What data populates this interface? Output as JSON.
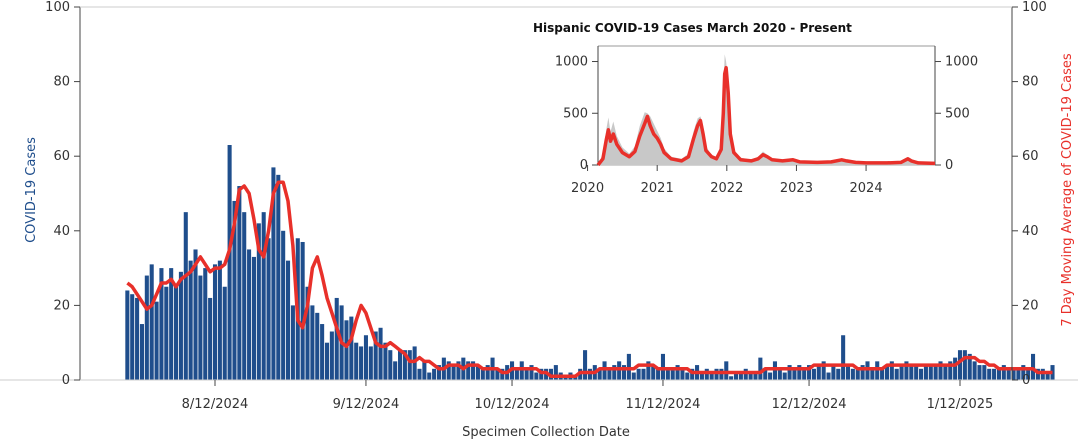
{
  "chart_data": [
    {
      "type": "bar",
      "xlabel": "Specimen Collection Date",
      "ylabel": "COVID-19 Cases",
      "y2label": "7 Day Moving Average of COVID-19 Cases",
      "ylim": [
        0,
        100
      ],
      "y2lim": [
        0,
        100
      ],
      "yticks": [
        "0",
        "20",
        "40",
        "60",
        "80",
        "100"
      ],
      "y2ticks": [
        "0",
        "20",
        "40",
        "60",
        "80",
        "100"
      ],
      "xticks": [
        {
          "label": "8/12/2024",
          "date": "2024-08-12"
        },
        {
          "label": "9/12/2024",
          "date": "2024-09-12"
        },
        {
          "label": "10/12/2024",
          "date": "2024-10-12"
        },
        {
          "label": "11/12/2024",
          "date": "2024-11-12"
        },
        {
          "label": "12/12/2024",
          "date": "2024-12-12"
        },
        {
          "label": "1/12/2025",
          "date": "2025-01-12"
        }
      ],
      "x_start": "2024-07-25",
      "bar_color": "#1f4e8c",
      "line_color": "#e8302a",
      "daily_cases": [
        24,
        23,
        22,
        15,
        28,
        31,
        21,
        30,
        25,
        30,
        25,
        29,
        45,
        32,
        35,
        28,
        30,
        22,
        31,
        32,
        25,
        63,
        48,
        52,
        45,
        35,
        33,
        42,
        45,
        38,
        57,
        55,
        40,
        32,
        20,
        38,
        37,
        25,
        20,
        18,
        15,
        10,
        13,
        22,
        20,
        16,
        17,
        10,
        9,
        12,
        9,
        13,
        14,
        10,
        8,
        5,
        8,
        8,
        8,
        9,
        3,
        5,
        2,
        3,
        4,
        6,
        5,
        4,
        5,
        6,
        5,
        5,
        4,
        3,
        4,
        6,
        3,
        3,
        4,
        5,
        3,
        5,
        3,
        4,
        2,
        3,
        3,
        3,
        4,
        2,
        1,
        2,
        1,
        3,
        8,
        3,
        4,
        3,
        5,
        3,
        4,
        5,
        4,
        7,
        2,
        3,
        3,
        5,
        4,
        3,
        7,
        3,
        3,
        4,
        3,
        2,
        3,
        4,
        2,
        3,
        2,
        3,
        3,
        5,
        1,
        2,
        2,
        3,
        2,
        2,
        6,
        3,
        2,
        5,
        3,
        2,
        4,
        3,
        4,
        3,
        4,
        3,
        4,
        5,
        2,
        4,
        3,
        12,
        4,
        3,
        3,
        4,
        5,
        3,
        5,
        3,
        4,
        5,
        3,
        4,
        5,
        4,
        4,
        3,
        4,
        4,
        4,
        5,
        4,
        5,
        6,
        8,
        8,
        7,
        5,
        4,
        4,
        3,
        3,
        3,
        4,
        3,
        3,
        3,
        4,
        3,
        7,
        3,
        3,
        2,
        4
      ],
      "moving_average": [
        26,
        25,
        23,
        21,
        19,
        20,
        23,
        26,
        26,
        27,
        25,
        27,
        28,
        29,
        31,
        33,
        31,
        29,
        30,
        30,
        31,
        35,
        42,
        51,
        52,
        50,
        43,
        35,
        33,
        40,
        50,
        53,
        53,
        48,
        36,
        16,
        14,
        20,
        30,
        33,
        28,
        22,
        18,
        14,
        10,
        9,
        11,
        16,
        20,
        18,
        14,
        10,
        9,
        9,
        10,
        9,
        8,
        7,
        5,
        5,
        6,
        5,
        5,
        4,
        3,
        3,
        4,
        4,
        4,
        3,
        4,
        4,
        4,
        3,
        3,
        3,
        3,
        2,
        2,
        3,
        3,
        3,
        3,
        3,
        3,
        2,
        2,
        1,
        1,
        1,
        1,
        1,
        1,
        2,
        2,
        2,
        2,
        3,
        3,
        3,
        3,
        3,
        3,
        3,
        3,
        4,
        4,
        4,
        4,
        3,
        3,
        3,
        3,
        3,
        3,
        3,
        2,
        2,
        2,
        2,
        2,
        2,
        2,
        2,
        2,
        2,
        2,
        2,
        2,
        2,
        2,
        3,
        3,
        3,
        3,
        3,
        3,
        3,
        3,
        3,
        3,
        4,
        4,
        4,
        4,
        4,
        4,
        4,
        4,
        4,
        3,
        3,
        3,
        3,
        3,
        3,
        4,
        4,
        4,
        4,
        4,
        4,
        4,
        4,
        4,
        4,
        4,
        4,
        4,
        4,
        4,
        5,
        6,
        6,
        6,
        5,
        5,
        4,
        4,
        3,
        3,
        3,
        3,
        3,
        3,
        3,
        3,
        2,
        2,
        2,
        2
      ]
    },
    {
      "type": "area",
      "title": "Hispanic COVID-19 Cases March 2020 - Present",
      "ylim": [
        0,
        1150
      ],
      "yticks": [
        "0",
        "500",
        "1000"
      ],
      "y2ticks": [
        "0",
        "500",
        "1000"
      ],
      "xticks": [
        "2020",
        "2021",
        "2022",
        "2023",
        "2024"
      ],
      "x_range_years": [
        2020.15,
        2024.99
      ],
      "tick_years": [
        2020,
        2021,
        2022,
        2023,
        2024
      ],
      "daily_color": "#c8c8c8",
      "average_color": "#e8302a",
      "average_points": [
        [
          2020.15,
          0
        ],
        [
          2020.22,
          60
        ],
        [
          2020.27,
          250
        ],
        [
          2020.3,
          340
        ],
        [
          2020.33,
          230
        ],
        [
          2020.37,
          300
        ],
        [
          2020.42,
          200
        ],
        [
          2020.5,
          120
        ],
        [
          2020.6,
          80
        ],
        [
          2020.68,
          130
        ],
        [
          2020.75,
          280
        ],
        [
          2020.82,
          400
        ],
        [
          2020.86,
          470
        ],
        [
          2020.9,
          380
        ],
        [
          2020.95,
          300
        ],
        [
          2021.0,
          260
        ],
        [
          2021.05,
          200
        ],
        [
          2021.1,
          120
        ],
        [
          2021.2,
          60
        ],
        [
          2021.35,
          40
        ],
        [
          2021.45,
          80
        ],
        [
          2021.52,
          250
        ],
        [
          2021.58,
          380
        ],
        [
          2021.62,
          430
        ],
        [
          2021.66,
          300
        ],
        [
          2021.7,
          140
        ],
        [
          2021.78,
          80
        ],
        [
          2021.85,
          60
        ],
        [
          2021.92,
          150
        ],
        [
          2021.95,
          500
        ],
        [
          2021.97,
          880
        ],
        [
          2021.99,
          940
        ],
        [
          2022.02,
          700
        ],
        [
          2022.05,
          300
        ],
        [
          2022.1,
          120
        ],
        [
          2022.2,
          50
        ],
        [
          2022.35,
          40
        ],
        [
          2022.45,
          60
        ],
        [
          2022.52,
          100
        ],
        [
          2022.58,
          80
        ],
        [
          2022.65,
          50
        ],
        [
          2022.8,
          40
        ],
        [
          2022.95,
          50
        ],
        [
          2023.05,
          30
        ],
        [
          2023.3,
          25
        ],
        [
          2023.5,
          30
        ],
        [
          2023.65,
          50
        ],
        [
          2023.72,
          40
        ],
        [
          2023.85,
          25
        ],
        [
          2024.0,
          20
        ],
        [
          2024.3,
          20
        ],
        [
          2024.5,
          25
        ],
        [
          2024.6,
          60
        ],
        [
          2024.65,
          40
        ],
        [
          2024.75,
          20
        ],
        [
          2024.99,
          15
        ]
      ],
      "daily_points": [
        [
          2020.15,
          0
        ],
        [
          2020.22,
          110
        ],
        [
          2020.27,
          350
        ],
        [
          2020.3,
          460
        ],
        [
          2020.33,
          320
        ],
        [
          2020.37,
          420
        ],
        [
          2020.42,
          280
        ],
        [
          2020.5,
          170
        ],
        [
          2020.6,
          110
        ],
        [
          2020.68,
          180
        ],
        [
          2020.75,
          380
        ],
        [
          2020.82,
          510
        ],
        [
          2020.86,
          500
        ],
        [
          2020.9,
          470
        ],
        [
          2020.95,
          400
        ],
        [
          2021.0,
          330
        ],
        [
          2021.05,
          260
        ],
        [
          2021.1,
          160
        ],
        [
          2021.2,
          80
        ],
        [
          2021.35,
          60
        ],
        [
          2021.45,
          110
        ],
        [
          2021.52,
          320
        ],
        [
          2021.58,
          450
        ],
        [
          2021.62,
          470
        ],
        [
          2021.66,
          380
        ],
        [
          2021.7,
          180
        ],
        [
          2021.78,
          100
        ],
        [
          2021.85,
          80
        ],
        [
          2021.92,
          200
        ],
        [
          2021.95,
          700
        ],
        [
          2021.97,
          1070
        ],
        [
          2021.99,
          1000
        ],
        [
          2022.02,
          820
        ],
        [
          2022.05,
          380
        ],
        [
          2022.1,
          150
        ],
        [
          2022.2,
          70
        ],
        [
          2022.35,
          50
        ],
        [
          2022.45,
          80
        ],
        [
          2022.52,
          130
        ],
        [
          2022.58,
          100
        ],
        [
          2022.65,
          60
        ],
        [
          2022.8,
          50
        ],
        [
          2022.95,
          60
        ],
        [
          2023.05,
          40
        ],
        [
          2023.3,
          30
        ],
        [
          2023.5,
          40
        ],
        [
          2023.65,
          60
        ],
        [
          2023.72,
          50
        ],
        [
          2023.85,
          30
        ],
        [
          2024.0,
          25
        ],
        [
          2024.3,
          25
        ],
        [
          2024.5,
          30
        ],
        [
          2024.6,
          70
        ],
        [
          2024.65,
          50
        ],
        [
          2024.75,
          25
        ],
        [
          2024.99,
          20
        ]
      ]
    }
  ]
}
